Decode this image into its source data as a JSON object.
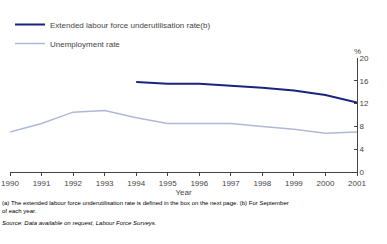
{
  "chart_data": {
    "type": "line",
    "x": [
      1990,
      1991,
      1992,
      1993,
      1994,
      1995,
      1996,
      1997,
      1998,
      1999,
      2000,
      2001
    ],
    "series": [
      {
        "name": "Extended labour force underutilisation rate(b)",
        "color": "#1a237e",
        "values": [
          null,
          null,
          null,
          null,
          15.8,
          15.5,
          15.5,
          15.2,
          14.8,
          14.3,
          13.5,
          12.2
        ]
      },
      {
        "name": "Unemployment rate",
        "color": "#b0b8d8",
        "values": [
          7.0,
          8.5,
          10.5,
          10.8,
          9.5,
          8.5,
          8.5,
          8.5,
          8.0,
          7.5,
          6.8,
          7.0
        ]
      }
    ],
    "xlim": [
      1990,
      2001
    ],
    "xticks": [
      1990,
      1991,
      1992,
      1993,
      1994,
      1995,
      1996,
      1997,
      1998,
      1999,
      2000,
      2001
    ],
    "xlabel": "Year",
    "ylim": [
      0,
      20
    ],
    "yticks": [
      0,
      4,
      8,
      12,
      16,
      20
    ],
    "ylabel": "%",
    "grid": false,
    "legend": "upper left",
    "annotations": [
      "(a) The extended labour force underutilisation rate is defined in the box on the next page. (b) For September\nof each year.",
      "Source: Data available on request, Labour Force Surveys."
    ]
  }
}
